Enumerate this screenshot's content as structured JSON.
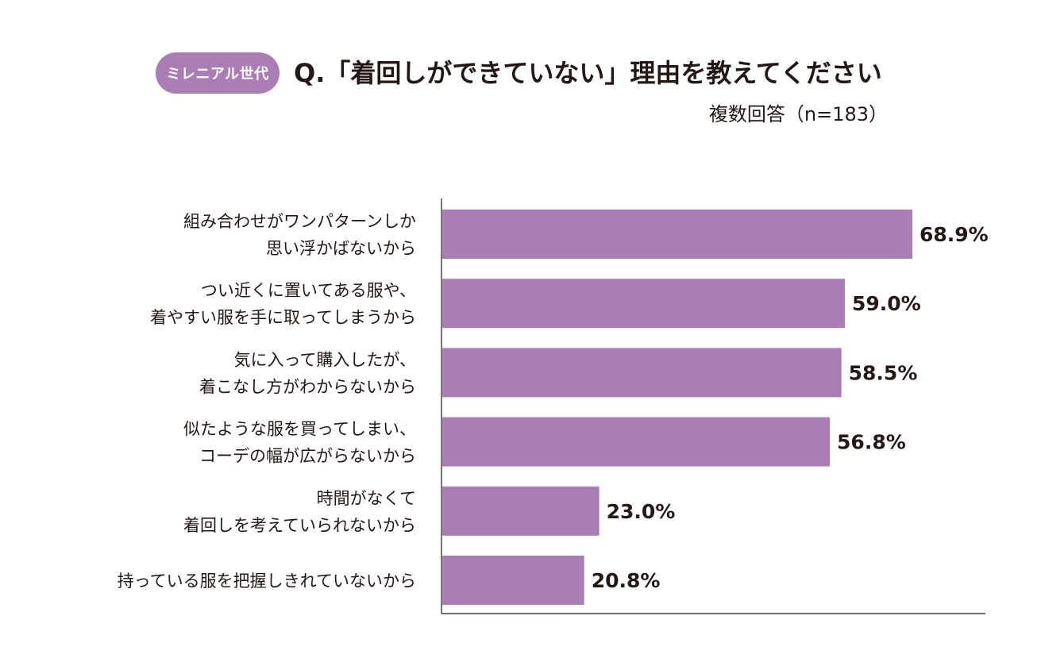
{
  "header": {
    "badge": "ミレニアル世代",
    "title": "Q.「着回しができていない」理由を教えてください",
    "subtitle": "複数回答（n=183）"
  },
  "colors": {
    "bar": "#ab7db5",
    "badge": "#ab7db5",
    "axis": "#231815",
    "text": "#231815"
  },
  "chart_data": {
    "type": "bar",
    "orientation": "horizontal",
    "title": "Q.「着回しができていない」理由を教えてください",
    "subtitle": "複数回答（n=183）",
    "categories": [
      [
        "組み合わせがワンパターンしか",
        "思い浮かばないから"
      ],
      [
        "つい近くに置いてある服や、",
        "着やすい服を手に取ってしまうから"
      ],
      [
        "気に入って購入したが、",
        "着こなし方がわからないから"
      ],
      [
        "似たような服を買ってしまい、",
        "コーデの幅が広がらないから"
      ],
      [
        "時間がなくて",
        "着回しを考えていられないから"
      ],
      [
        "持っている服を把握しきれていないから"
      ]
    ],
    "values": [
      68.9,
      59.0,
      58.5,
      56.8,
      23.0,
      20.8
    ],
    "value_labels": [
      "68.9%",
      "59.0%",
      "58.5%",
      "56.8%",
      "23.0%",
      "20.8%"
    ],
    "unit": "%",
    "xlim": [
      0,
      80
    ],
    "grid": false,
    "legend": "none"
  }
}
